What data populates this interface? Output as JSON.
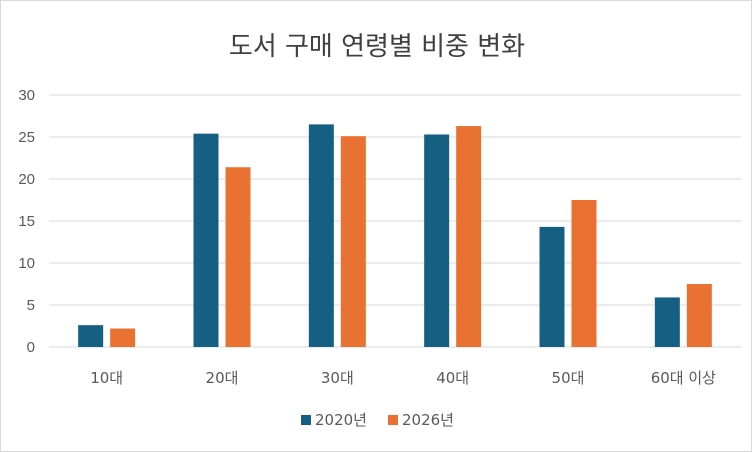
{
  "chart_data": {
    "type": "bar",
    "title": "도서 구매 연령별 비중 변화",
    "categories": [
      "10대",
      "20대",
      "30대",
      "40대",
      "50대",
      "60대 이상"
    ],
    "series": [
      {
        "name": "2020년",
        "color": "#156082",
        "values": [
          2.6,
          25.4,
          26.5,
          25.3,
          14.3,
          5.9
        ]
      },
      {
        "name": "2026년",
        "color": "#E97132",
        "values": [
          2.2,
          21.4,
          25.1,
          26.3,
          17.5,
          7.5
        ]
      }
    ],
    "ylim": [
      0,
      30
    ],
    "yticks": [
      0,
      5,
      10,
      15,
      20,
      25,
      30
    ],
    "grid": true,
    "legend": "bottom"
  }
}
